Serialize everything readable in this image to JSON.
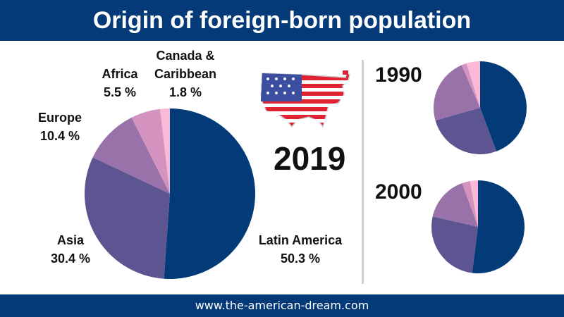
{
  "header": {
    "title": "Origin of foreign-born population"
  },
  "footer": {
    "url": "www.the-american-dream.com"
  },
  "chart_data": [
    {
      "type": "pie",
      "title": "2019",
      "categories": [
        "Latin America",
        "Asia",
        "Europe",
        "Africa",
        "Canada & Caribbean"
      ],
      "values": [
        50.3,
        30.4,
        10.4,
        5.5,
        1.8
      ],
      "labels": [
        "50.3 %",
        "30.4 %",
        "10.4 %",
        "5.5 %",
        "1.8 %"
      ],
      "colors": [
        "#033b78",
        "#5c5591",
        "#9a72aa",
        "#d393be",
        "#fbb9d7"
      ]
    },
    {
      "type": "pie",
      "title": "1990",
      "categories": [
        "Latin America",
        "Asia",
        "Europe",
        "Africa",
        "Canada & Caribbean"
      ],
      "values": [
        44.3,
        26.3,
        22.9,
        1.8,
        4.7
      ]
    },
    {
      "type": "pie",
      "title": "2000",
      "categories": [
        "Latin America",
        "Asia",
        "Europe",
        "Africa",
        "Canada & Caribbean"
      ],
      "values": [
        51.7,
        26.4,
        15.8,
        2.8,
        2.7
      ]
    }
  ],
  "flag_icon": "us-map-flag-icon"
}
